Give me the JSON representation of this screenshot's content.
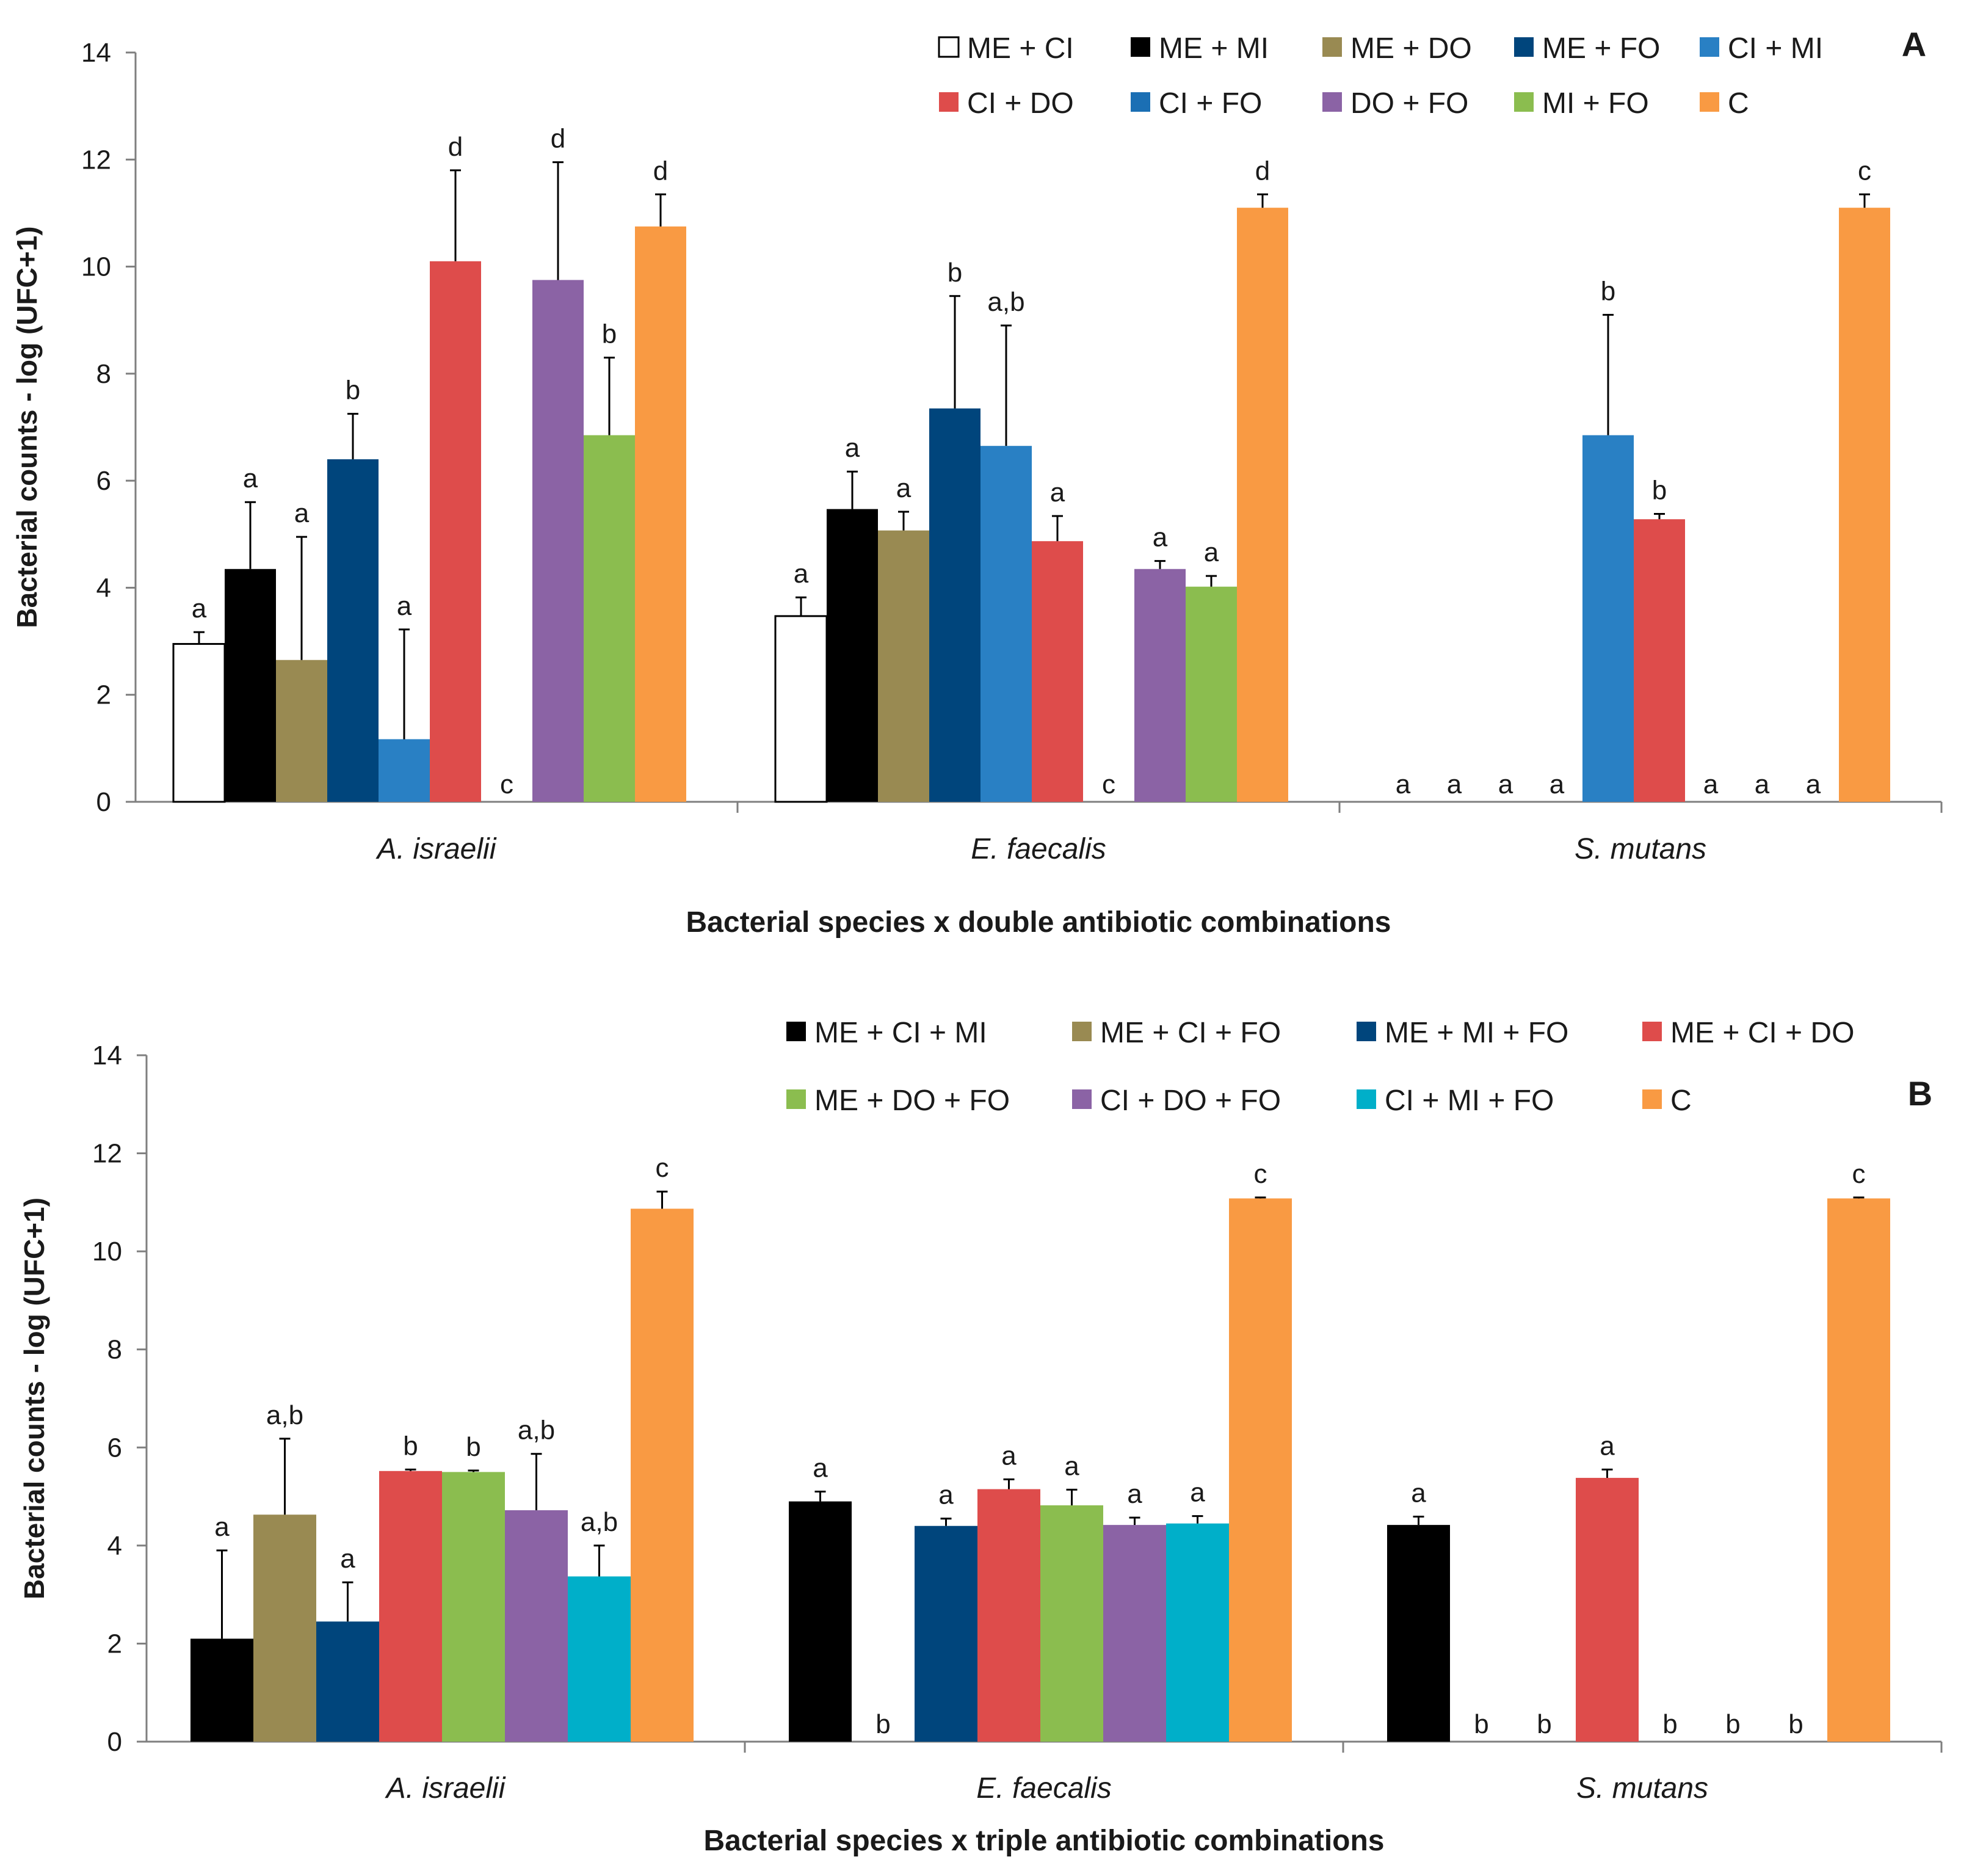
{
  "chart_data": [
    {
      "type": "bar",
      "panel_label": "A",
      "title": "",
      "xlabel": "Bacterial species x double antibiotic combinations",
      "ylabel": "Bacterial counts - log (UFC+1)",
      "ylim": [
        0,
        14
      ],
      "yticks": [
        "0",
        "2",
        "4",
        "6",
        "8",
        "10",
        "12",
        "14"
      ],
      "grid": false,
      "legend_position": "top-right",
      "categories": [
        "A. israelii",
        "E. faecalis",
        "S. mutans"
      ],
      "series": [
        {
          "name": "ME + CI",
          "color": "#ffffff",
          "values": [
            2.95,
            3.47,
            0
          ],
          "errors": [
            0.22,
            0.35,
            0
          ],
          "labels": [
            "a",
            "a",
            "a"
          ]
        },
        {
          "name": "ME + MI",
          "color": "#000000",
          "values": [
            4.35,
            5.47,
            0
          ],
          "errors": [
            1.25,
            0.7,
            0
          ],
          "labels": [
            "a",
            "a",
            "a"
          ]
        },
        {
          "name": "ME + DO",
          "color": "#998a52",
          "values": [
            2.65,
            5.07,
            0
          ],
          "errors": [
            2.3,
            0.35,
            0
          ],
          "labels": [
            "a",
            "a",
            "a"
          ]
        },
        {
          "name": "ME + FO",
          "color": "#00457c",
          "values": [
            6.4,
            7.35,
            0
          ],
          "errors": [
            0.85,
            2.1,
            0
          ],
          "labels": [
            "b",
            "b",
            "a"
          ]
        },
        {
          "name": "CI  +  MI",
          "color": "#2980c4",
          "values": [
            1.17,
            6.65,
            6.85
          ],
          "errors": [
            2.05,
            2.25,
            2.25
          ],
          "labels": [
            "a",
            "a,b",
            "b"
          ]
        },
        {
          "name": "CI  +  DO",
          "color": "#de4c4b",
          "values": [
            10.1,
            4.87,
            5.28
          ],
          "errors": [
            1.7,
            0.47,
            0.1
          ],
          "labels": [
            "d",
            "a",
            "b"
          ]
        },
        {
          "name": "CI  +  FO",
          "color": "#1b6fb4",
          "values": [
            0,
            0,
            0
          ],
          "errors": [
            0,
            0,
            0
          ],
          "labels": [
            "c",
            "c",
            "a"
          ]
        },
        {
          "name": "DO + FO",
          "color": "#8b63a5",
          "values": [
            9.75,
            4.35,
            0
          ],
          "errors": [
            2.2,
            0.15,
            0
          ],
          "labels": [
            "d",
            "a",
            "a"
          ]
        },
        {
          "name": "MI  +  FO",
          "color": "#8bbd4f",
          "values": [
            6.85,
            4.02,
            0
          ],
          "errors": [
            1.45,
            0.2,
            0
          ],
          "labels": [
            "b",
            "a",
            "a"
          ]
        },
        {
          "name": "C",
          "color": "#f99a43",
          "values": [
            10.75,
            11.1,
            11.1
          ],
          "errors": [
            0.6,
            0.25,
            0.25
          ],
          "labels": [
            "d",
            "d",
            "c"
          ]
        }
      ]
    },
    {
      "type": "bar",
      "panel_label": "B",
      "title": "",
      "xlabel": "Bacterial species x triple antibiotic combinations",
      "ylabel": "Bacterial counts - log (UFC+1)",
      "ylim": [
        0,
        14
      ],
      "yticks": [
        "0",
        "2",
        "4",
        "6",
        "8",
        "10",
        "12",
        "14"
      ],
      "grid": false,
      "legend_position": "top-right",
      "categories": [
        "A. israelii",
        "E. faecalis",
        "S. mutans"
      ],
      "series": [
        {
          "name": "ME + CI + MI",
          "color": "#000000",
          "values": [
            2.1,
            4.9,
            4.42
          ],
          "errors": [
            1.8,
            0.2,
            0.17
          ],
          "labels": [
            "a",
            "a",
            "a"
          ]
        },
        {
          "name": "ME + CI + FO",
          "color": "#998a52",
          "values": [
            4.63,
            0,
            0
          ],
          "errors": [
            1.55,
            0,
            0
          ],
          "labels": [
            "a,b",
            "b",
            "b"
          ]
        },
        {
          "name": "ME + MI + FO",
          "color": "#00457c",
          "values": [
            2.45,
            4.4,
            0
          ],
          "errors": [
            0.8,
            0.15,
            0
          ],
          "labels": [
            "a",
            "a",
            "b"
          ]
        },
        {
          "name": "ME + CI + DO",
          "color": "#de4c4b",
          "values": [
            5.52,
            5.15,
            5.38
          ],
          "errors": [
            0.03,
            0.2,
            0.17
          ],
          "labels": [
            "b",
            "a",
            "a"
          ]
        },
        {
          "name": "ME + DO + FO",
          "color": "#8bbd4f",
          "values": [
            5.5,
            4.82,
            0
          ],
          "errors": [
            0.03,
            0.32,
            0
          ],
          "labels": [
            "b",
            "a",
            "b"
          ]
        },
        {
          "name": "CI + DO + FO",
          "color": "#8b63a5",
          "values": [
            4.72,
            4.42,
            0
          ],
          "errors": [
            1.15,
            0.15,
            0
          ],
          "labels": [
            "a,b",
            "a",
            "b"
          ]
        },
        {
          "name": "CI + MI + FO",
          "color": "#00afc9",
          "values": [
            3.37,
            4.45,
            0
          ],
          "errors": [
            0.63,
            0.15,
            0
          ],
          "labels": [
            "a,b",
            "a",
            "b"
          ]
        },
        {
          "name": "C",
          "color": "#f99a43",
          "values": [
            10.87,
            11.08,
            11.08
          ],
          "errors": [
            0.35,
            0.02,
            0.02
          ],
          "labels": [
            "c",
            "c",
            "c"
          ]
        }
      ]
    }
  ]
}
